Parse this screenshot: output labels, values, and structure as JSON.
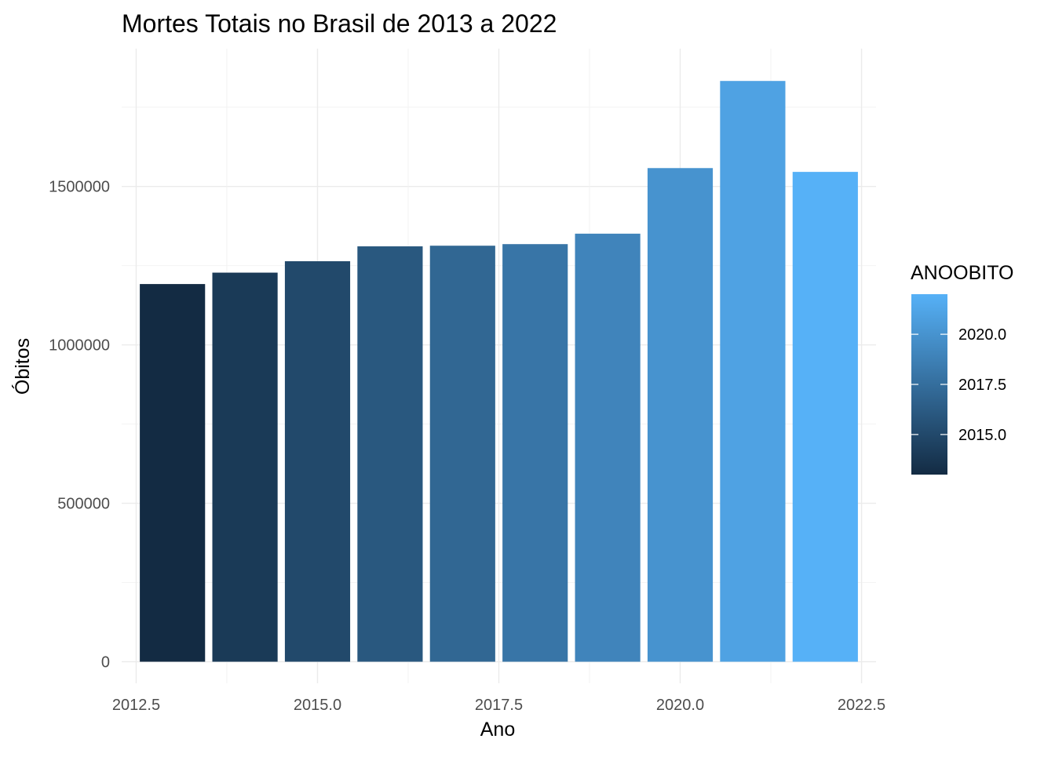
{
  "chart_data": {
    "type": "bar",
    "title": "Mortes Totais no Brasil de 2013 a 2022",
    "xlabel": "Ano",
    "ylabel": "Óbitos",
    "x": [
      2013,
      2014,
      2015,
      2016,
      2017,
      2018,
      2019,
      2020,
      2021,
      2022
    ],
    "values": [
      1192000,
      1228000,
      1264000,
      1311000,
      1313000,
      1318000,
      1351000,
      1558000,
      1833000,
      1546000
    ],
    "xlim": [
      2012.3,
      2022.7
    ],
    "ylim": [
      -68000,
      1935000
    ],
    "x_ticks": [
      2012.5,
      2015.0,
      2017.5,
      2020.0,
      2022.5
    ],
    "x_tick_labels": [
      "2012.5",
      "2015.0",
      "2017.5",
      "2020.0",
      "2022.5"
    ],
    "y_ticks": [
      0,
      500000,
      1000000,
      1500000
    ],
    "y_tick_labels": [
      "0",
      "500000",
      "1000000",
      "1500000"
    ],
    "grid": true,
    "legend": {
      "title": "ANOOBITO",
      "placement": "right",
      "type": "colorbar",
      "range": [
        2013,
        2022
      ],
      "breaks": [
        2015.0,
        2017.5,
        2020.0
      ],
      "labels": [
        "2015.0",
        "2017.5",
        "2020.0"
      ],
      "color_low": "#132B43",
      "color_high": "#56B1F7"
    }
  }
}
